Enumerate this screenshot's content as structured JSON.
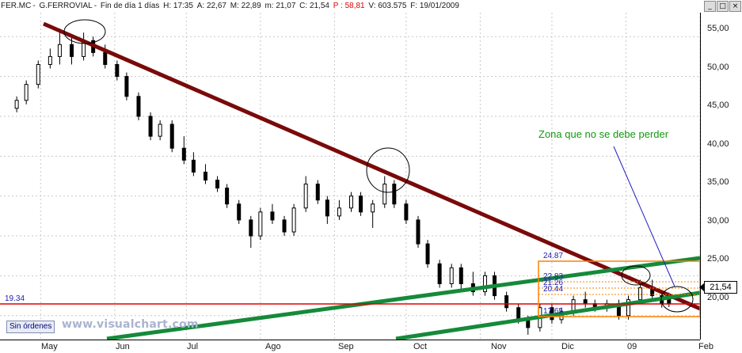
{
  "header": {
    "symbol": "FER.MC",
    "name": "G.FERROVIAL",
    "period": "Fin de día 1 días",
    "H": "H: 17:35",
    "A": "A: 22,67",
    "M": "M: 22,89",
    "m": "m: 21,07",
    "C": "C: 21,54",
    "P": "P : 58,81",
    "V": "V: 603.575",
    "F": "F: 19/01/2009"
  },
  "window_buttons": [
    "_",
    "□",
    "×"
  ],
  "y_axis": {
    "ticks": [
      "55,00",
      "50,00",
      "45,00",
      "40,00",
      "35,00",
      "30,00",
      "25,00",
      "20,00"
    ]
  },
  "x_axis": {
    "ticks": [
      "May",
      "Jun",
      "Jul",
      "Ago",
      "Sep",
      "Oct",
      "Nov",
      "Dic",
      "09",
      "Feb"
    ]
  },
  "current_price": "21,54",
  "labels": {
    "support_level": "19.34",
    "zone_note": "Zona que no se debe perder",
    "orders_button": "Sin órdenes",
    "watermark": "www.visualchart.com"
  },
  "fib_levels": [
    "24.87",
    "22.83",
    "21.26",
    "20.44",
    "17.65"
  ],
  "colors": {
    "resistance_line": "#7a0a0a",
    "channel_lines": "#158a3a",
    "support_line": "#e00000",
    "box": "#ff8000",
    "annotation": "#119911",
    "candle": "#000000"
  },
  "chart_data": {
    "type": "candlestick",
    "title": "FER.MC - G.FERROVIAL - Fin de día 1 días",
    "x_range": [
      "2008-04-14",
      "2009-02-01"
    ],
    "ylim": [
      17,
      58
    ],
    "grid": true,
    "series": [
      {
        "ohlc": [
          [
            "2008-04-21",
            46.0,
            47.5,
            45.5,
            47.0
          ],
          [
            "2008-04-25",
            47.0,
            49.5,
            46.5,
            49.0
          ],
          [
            "2008-04-30",
            49.0,
            52.0,
            48.5,
            51.5
          ],
          [
            "2008-05-05",
            51.5,
            53.5,
            51.0,
            52.5
          ],
          [
            "2008-05-09",
            52.5,
            56.0,
            51.5,
            54.0
          ],
          [
            "2008-05-14",
            54.0,
            55.0,
            51.5,
            52.5
          ],
          [
            "2008-05-19",
            52.5,
            55.5,
            52.0,
            54.5
          ],
          [
            "2008-05-23",
            54.5,
            55.0,
            52.5,
            53.0
          ],
          [
            "2008-05-28",
            53.0,
            54.0,
            51.0,
            51.5
          ],
          [
            "2008-06-02",
            51.5,
            52.0,
            49.5,
            50.0
          ],
          [
            "2008-06-06",
            50.0,
            50.5,
            47.0,
            47.5
          ],
          [
            "2008-06-11",
            47.5,
            48.0,
            44.5,
            45.0
          ],
          [
            "2008-06-16",
            45.0,
            45.5,
            42.0,
            42.5
          ],
          [
            "2008-06-20",
            42.5,
            44.5,
            42.0,
            44.0
          ],
          [
            "2008-06-25",
            44.0,
            44.5,
            40.5,
            41.0
          ],
          [
            "2008-06-30",
            41.0,
            42.5,
            39.0,
            39.5
          ],
          [
            "2008-07-04",
            39.5,
            40.5,
            37.5,
            38.0
          ],
          [
            "2008-07-09",
            38.0,
            39.0,
            36.5,
            37.0
          ],
          [
            "2008-07-14",
            37.0,
            37.5,
            35.5,
            36.0
          ],
          [
            "2008-07-18",
            36.0,
            36.5,
            33.5,
            34.0
          ],
          [
            "2008-07-23",
            34.0,
            34.5,
            31.5,
            32.0
          ],
          [
            "2008-07-28",
            32.0,
            32.5,
            28.5,
            30.0
          ],
          [
            "2008-08-01",
            30.0,
            33.5,
            29.5,
            33.0
          ],
          [
            "2008-08-06",
            33.0,
            34.0,
            31.5,
            32.0
          ],
          [
            "2008-08-11",
            32.0,
            32.5,
            30.0,
            30.5
          ],
          [
            "2008-08-15",
            30.5,
            34.0,
            30.0,
            33.5
          ],
          [
            "2008-08-20",
            33.5,
            37.5,
            33.0,
            36.5
          ],
          [
            "2008-08-25",
            36.5,
            37.0,
            34.0,
            34.5
          ],
          [
            "2008-08-29",
            34.5,
            35.0,
            31.5,
            32.5
          ],
          [
            "2008-09-03",
            32.5,
            34.5,
            32.0,
            33.5
          ],
          [
            "2008-09-08",
            33.5,
            35.5,
            33.0,
            35.0
          ],
          [
            "2008-09-12",
            35.0,
            35.5,
            32.5,
            33.0
          ],
          [
            "2008-09-17",
            33.0,
            34.5,
            31.0,
            34.0
          ],
          [
            "2008-09-22",
            34.0,
            37.5,
            33.5,
            36.5
          ],
          [
            "2008-09-26",
            36.5,
            37.0,
            33.5,
            34.0
          ],
          [
            "2008-10-01",
            34.0,
            34.5,
            31.5,
            32.0
          ],
          [
            "2008-10-06",
            32.0,
            32.5,
            28.5,
            29.0
          ],
          [
            "2008-10-10",
            29.0,
            29.5,
            26.0,
            26.5
          ],
          [
            "2008-10-15",
            26.5,
            27.0,
            23.5,
            24.0
          ],
          [
            "2008-10-20",
            24.0,
            26.5,
            23.5,
            26.0
          ],
          [
            "2008-10-24",
            26.0,
            26.5,
            23.0,
            24.0
          ],
          [
            "2008-10-29",
            24.0,
            25.5,
            22.5,
            23.0
          ],
          [
            "2008-11-03",
            23.0,
            25.5,
            22.5,
            25.0
          ],
          [
            "2008-11-07",
            25.0,
            25.5,
            22.0,
            22.5
          ],
          [
            "2008-11-12",
            22.5,
            23.0,
            20.5,
            21.0
          ],
          [
            "2008-11-17",
            21.0,
            21.5,
            19.0,
            19.5
          ],
          [
            "2008-11-21",
            19.5,
            20.0,
            17.6,
            18.5
          ],
          [
            "2008-11-26",
            18.5,
            21.5,
            18.0,
            21.0
          ],
          [
            "2008-12-01",
            21.0,
            21.5,
            19.0,
            19.5
          ],
          [
            "2008-12-05",
            19.5,
            21.0,
            19.0,
            20.5
          ],
          [
            "2008-12-10",
            20.5,
            22.5,
            20.0,
            22.0
          ],
          [
            "2008-12-15",
            22.0,
            23.0,
            21.0,
            21.5
          ],
          [
            "2008-12-19",
            21.5,
            22.0,
            20.5,
            21.0
          ],
          [
            "2008-12-24",
            21.0,
            22.0,
            20.5,
            21.5
          ],
          [
            "2008-12-29",
            21.5,
            22.0,
            19.5,
            20.0
          ],
          [
            "2009-01-02",
            20.0,
            22.5,
            19.5,
            22.0
          ],
          [
            "2009-01-07",
            22.0,
            24.5,
            21.5,
            23.5
          ],
          [
            "2009-01-12",
            23.5,
            24.5,
            22.0,
            22.5
          ],
          [
            "2009-01-16",
            22.5,
            23.0,
            21.0,
            21.5
          ],
          [
            "2009-01-19",
            22.67,
            22.89,
            21.07,
            21.54
          ]
        ]
      }
    ]
  }
}
